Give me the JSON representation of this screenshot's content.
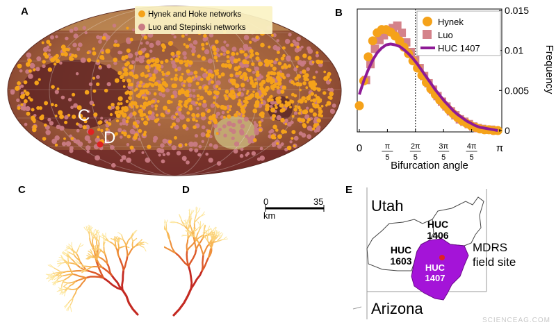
{
  "panels": {
    "a": "A",
    "b": "B",
    "c": "C",
    "d": "D",
    "e": "E"
  },
  "map_legend": {
    "hynek": "Hynek and Hoke networks",
    "luo": "Luo and Stepinski networks",
    "hynek_color": "#f5a21a",
    "luo_color": "#c97b84"
  },
  "map_labels": {
    "c": "C",
    "d": "D"
  },
  "chart_data": {
    "type": "scatter",
    "xlabel": "Bifurcation angle",
    "ylabel": "Frequency",
    "xlim": [
      0,
      3.1416
    ],
    "ylim": [
      0,
      0.015
    ],
    "x_ticks": [
      "0",
      "π/5",
      "2π/5",
      "3π/5",
      "4π/5",
      "π"
    ],
    "y_ticks": [
      "0",
      "0.005",
      "0.01",
      "0.015"
    ],
    "vline_x": 1.2566,
    "series": [
      {
        "name": "Hynek",
        "marker": "circle",
        "color": "#f5a21a",
        "x": [
          0,
          0.1,
          0.2,
          0.3,
          0.4,
          0.5,
          0.6,
          0.7,
          0.8,
          0.9,
          1.0,
          1.1,
          1.2,
          1.3,
          1.4,
          1.5,
          1.6,
          1.7,
          1.8,
          1.9,
          2.0,
          2.1,
          2.2,
          2.3,
          2.4,
          2.5,
          2.6,
          2.7,
          2.8,
          2.9,
          3.0,
          3.1
        ],
        "y": [
          0.0031,
          0.0062,
          0.0092,
          0.0112,
          0.0122,
          0.0126,
          0.0126,
          0.0123,
          0.0118,
          0.0112,
          0.0104,
          0.0096,
          0.0087,
          0.0078,
          0.0069,
          0.006,
          0.0052,
          0.0045,
          0.0038,
          0.0032,
          0.0026,
          0.0021,
          0.0016,
          0.0012,
          0.0009,
          0.0006,
          0.0004,
          0.0002,
          0.0001,
          0.0001,
          0.0,
          0.0
        ]
      },
      {
        "name": "Luo",
        "marker": "square",
        "color": "#d4828a",
        "x": [
          0.15,
          0.25,
          0.35,
          0.45,
          0.55,
          0.65,
          0.75,
          0.85,
          0.95,
          1.05,
          1.15,
          1.25,
          1.35,
          1.45,
          1.55,
          1.65,
          1.75,
          1.85,
          1.95,
          2.05,
          2.15,
          2.25,
          2.35,
          2.45,
          2.55,
          2.65,
          2.75,
          2.85,
          2.95,
          3.05
        ],
        "y": [
          0.0063,
          0.0083,
          0.0102,
          0.0113,
          0.0119,
          0.0124,
          0.0128,
          0.0131,
          0.0122,
          0.011,
          0.0098,
          0.0088,
          0.0078,
          0.0068,
          0.0059,
          0.0051,
          0.0043,
          0.0036,
          0.003,
          0.0024,
          0.0019,
          0.0014,
          0.0011,
          0.0008,
          0.0005,
          0.0003,
          0.0002,
          0.0001,
          0.0001,
          0.0
        ]
      },
      {
        "name": "HUC 1407",
        "marker": "line",
        "color": "#8e1a96",
        "x": [
          0,
          0.1,
          0.2,
          0.3,
          0.4,
          0.5,
          0.6,
          0.7,
          0.8,
          0.9,
          1.0,
          1.1,
          1.2,
          1.3,
          1.4,
          1.5,
          1.6,
          1.7,
          1.8,
          1.9,
          2.0,
          2.1,
          2.2,
          2.3,
          2.4,
          2.5,
          2.6,
          2.7,
          2.8,
          2.9,
          3.0,
          3.1
        ],
        "y": [
          0.0045,
          0.0062,
          0.0076,
          0.0088,
          0.0097,
          0.0103,
          0.0107,
          0.0108,
          0.0107,
          0.0105,
          0.0101,
          0.0096,
          0.009,
          0.0083,
          0.0075,
          0.0067,
          0.0059,
          0.0051,
          0.0044,
          0.0037,
          0.0031,
          0.0025,
          0.002,
          0.0016,
          0.0012,
          0.0009,
          0.0006,
          0.0004,
          0.0003,
          0.0002,
          0.0001,
          0.0
        ]
      }
    ]
  },
  "scalebar": {
    "start": "0",
    "end": "35",
    "unit": "km"
  },
  "utah_map": {
    "state_top": "Utah",
    "state_bottom": "Arizona",
    "huc_1406": [
      "HUC",
      "1406"
    ],
    "huc_1603": [
      "HUC",
      "1603"
    ],
    "huc_1407": [
      "HUC",
      "1407"
    ],
    "site": [
      "MDRS",
      "field site"
    ],
    "huc_1407_color": "#a414d8",
    "site_color": "#e02222"
  },
  "watermark": "SCIENCEAG.COM"
}
